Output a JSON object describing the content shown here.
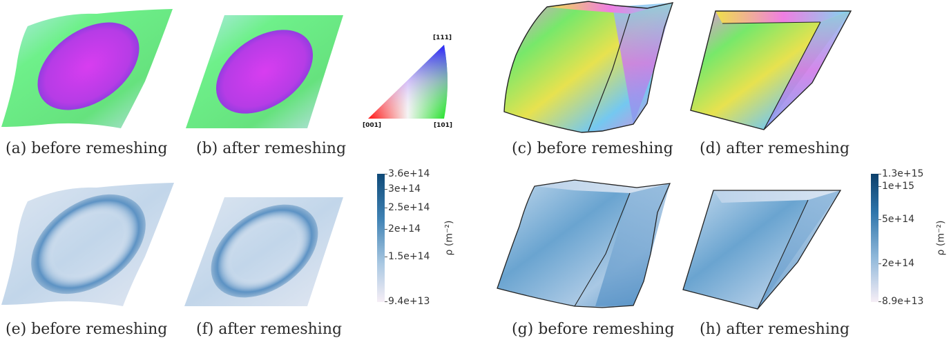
{
  "captions": {
    "a": "(a) before remeshing",
    "b": "(b) after remeshing",
    "c": "(c)  before remeshing",
    "d": "(d)  after remeshing",
    "e": "(e) before remeshing",
    "f": "(f)  after remeshing",
    "g": "(g)  before remeshing",
    "h": "(h)  after remeshing"
  },
  "ipf_triangle": {
    "top_label": "[111]",
    "left_label": "[001]",
    "right_label": "[101]"
  },
  "colorbar_left": {
    "title": "ρ (m⁻²)",
    "ticks": [
      "3.6e+14",
      "3e+14",
      "2.5e+14",
      "2e+14",
      "1.5e+14",
      "9.4e+13"
    ]
  },
  "colorbar_right": {
    "title": "ρ (m⁻²)",
    "ticks": [
      "1.3e+15",
      "1e+15",
      "5e+14",
      "2e+14",
      "8.9e+13"
    ]
  },
  "colors": {
    "ipf_magenta": "#c83ee0",
    "ipf_green": "#6ee87a",
    "density_dark": "#1f5f91",
    "density_light": "#f2eef5"
  }
}
